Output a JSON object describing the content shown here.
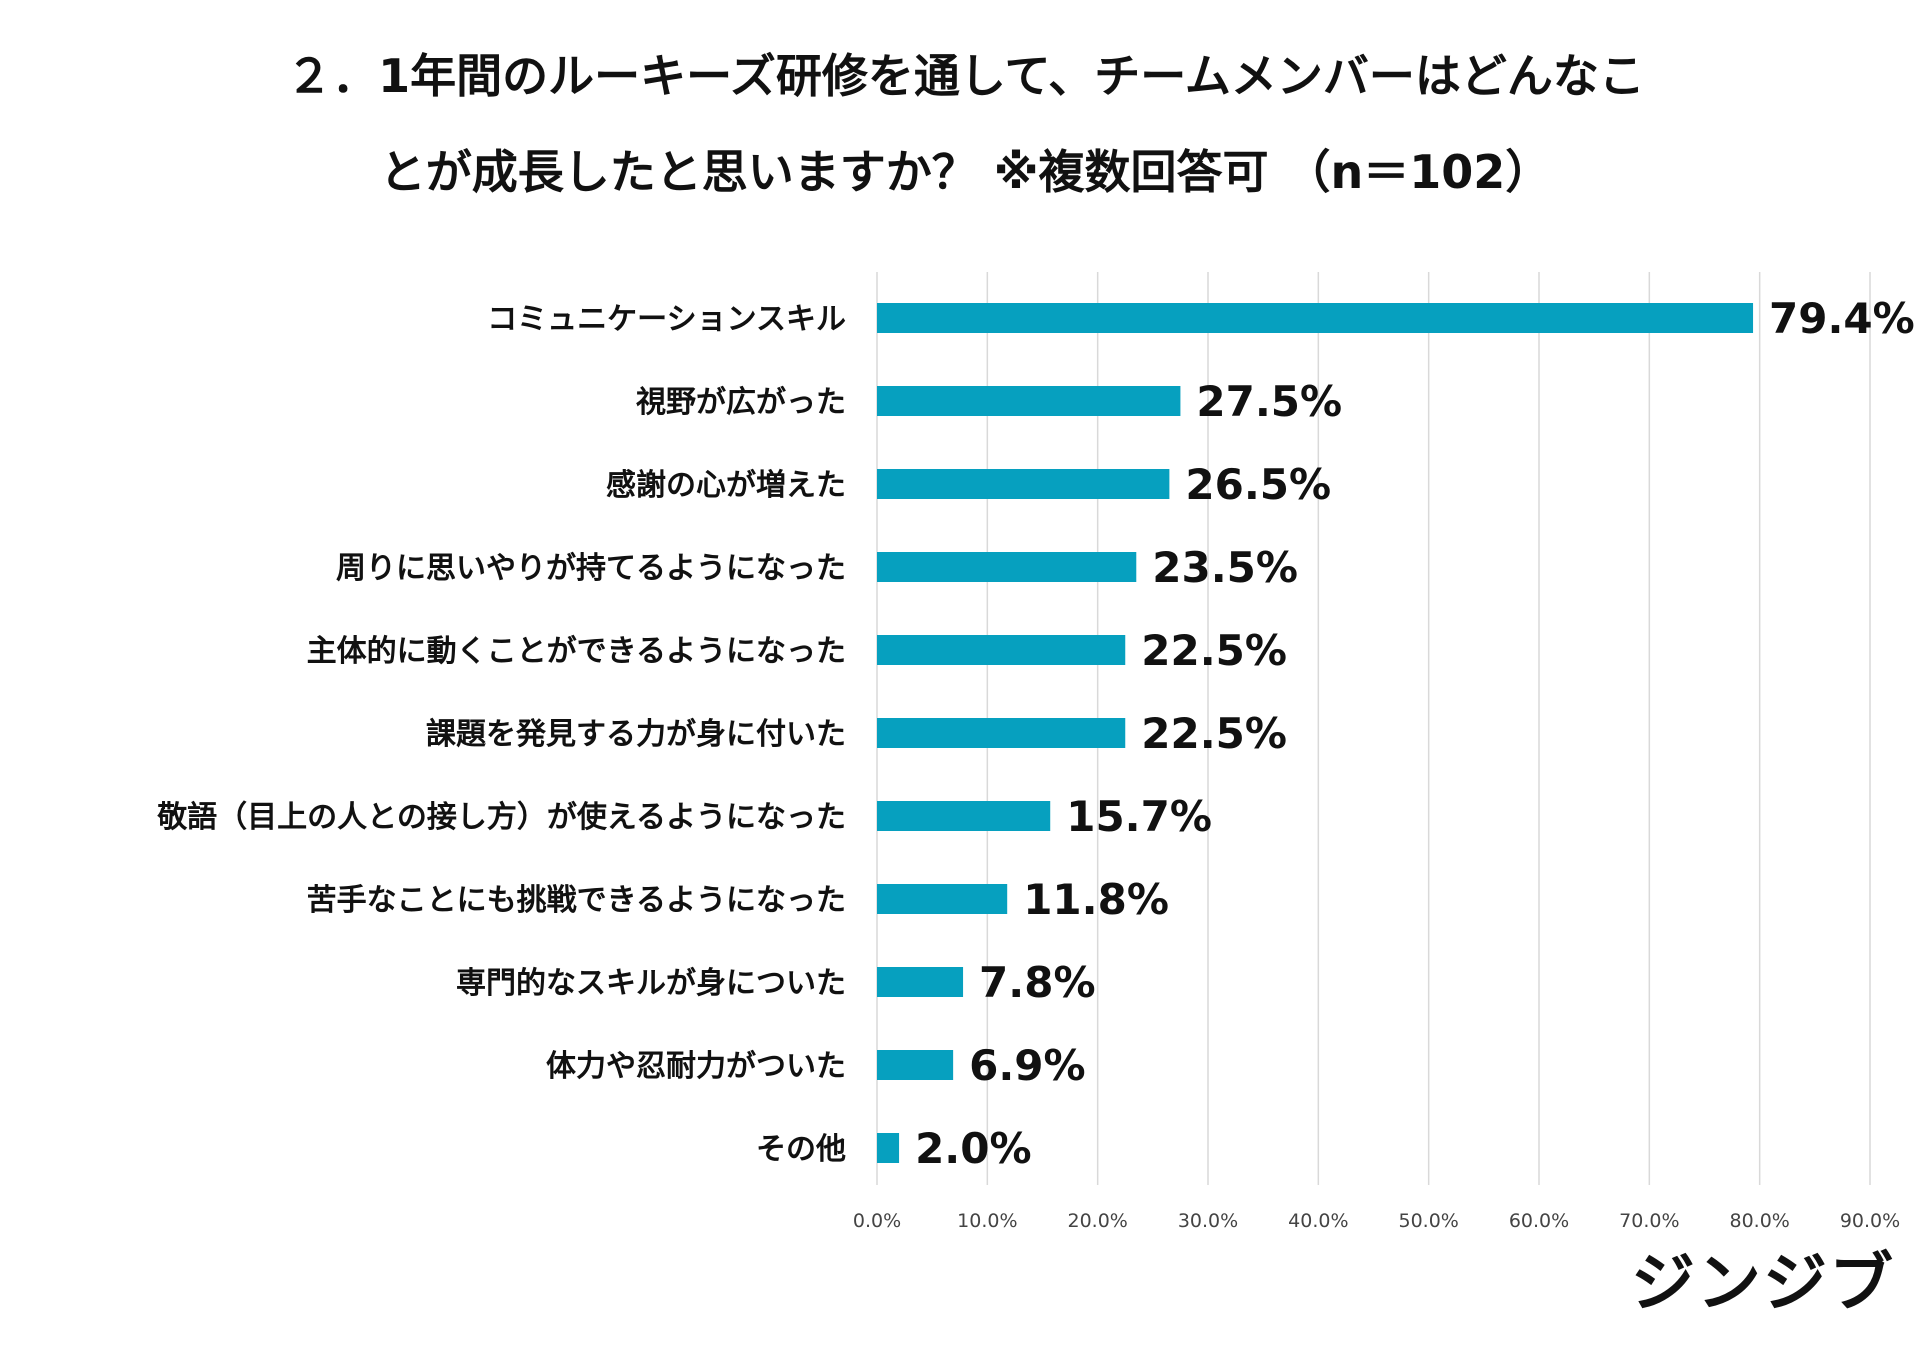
{
  "title": {
    "line1": "２．1年間のルーキーズ研修を通して、チームメンバーはどんなこ",
    "line2": "とが成長したと思いますか？ ※複数回答可 （n＝102）"
  },
  "logo": "ジンジブ",
  "colors": {
    "bar": "#06a0bf",
    "grid": "#d9d9d9",
    "text": "#111111",
    "tick": "#444444"
  },
  "chart_data": {
    "type": "bar",
    "orientation": "horizontal",
    "categories": [
      "コミュニケーションスキル",
      "視野が広がった",
      "感謝の心が増えた",
      "周りに思いやりが持てるようになった",
      "主体的に動くことができるようになった",
      "課題を発見する力が身に付いた",
      "敬語（目上の人との接し方）が使えるようになった",
      "苦手なことにも挑戦できるようになった",
      "専門的なスキルが身についた",
      "体力や忍耐力がついた",
      "その他"
    ],
    "values": [
      79.4,
      27.5,
      26.5,
      23.5,
      22.5,
      22.5,
      15.7,
      11.8,
      7.8,
      6.9,
      2.0
    ],
    "value_labels": [
      "79.4%",
      "27.5%",
      "26.5%",
      "23.5%",
      "22.5%",
      "22.5%",
      "15.7%",
      "11.8%",
      "7.8%",
      "6.9%",
      "2.0%"
    ],
    "xlim": [
      0,
      90
    ],
    "ticks": [
      0,
      10,
      20,
      30,
      40,
      50,
      60,
      70,
      80,
      90
    ],
    "tick_labels": [
      "0.0%",
      "10.0%",
      "20.0%",
      "30.0%",
      "40.0%",
      "50.0%",
      "60.0%",
      "70.0%",
      "80.0%",
      "90.0%"
    ],
    "grid": true,
    "xlabel": "",
    "ylabel": ""
  }
}
